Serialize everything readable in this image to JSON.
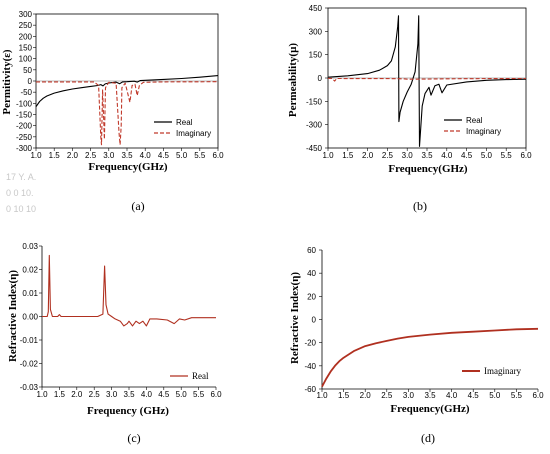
{
  "chart_data": [
    {
      "panel": "a",
      "type": "line",
      "caption": "(a)",
      "xlabel": "Frequency(GHz)",
      "ylabel": "Permitivity(ε)",
      "xlim": [
        1.0,
        6.0
      ],
      "ylim": [
        -300,
        300
      ],
      "xticks": [
        "1.0",
        "1.5",
        "2.0",
        "2.5",
        "3.0",
        "3.5",
        "4.0",
        "4.5",
        "5.0",
        "5.5",
        "6.0"
      ],
      "yticks": [
        "300",
        "250",
        "200",
        "150",
        "100",
        "50",
        "0",
        "-50",
        "-100",
        "-150",
        "-200",
        "-250",
        "-300"
      ],
      "legend_position": "bottom-right",
      "series": [
        {
          "name": "Real",
          "color": "#000000",
          "dash": "solid",
          "points": [
            [
              1.0,
              -115
            ],
            [
              1.1,
              -92
            ],
            [
              1.2,
              -77
            ],
            [
              1.3,
              -67
            ],
            [
              1.5,
              -54
            ],
            [
              1.75,
              -44
            ],
            [
              2.0,
              -36
            ],
            [
              2.25,
              -30
            ],
            [
              2.5,
              -24
            ],
            [
              2.7,
              -20
            ],
            [
              2.78,
              -16
            ],
            [
              2.84,
              -22
            ],
            [
              2.9,
              -13
            ],
            [
              3.0,
              -9
            ],
            [
              3.2,
              -5
            ],
            [
              3.3,
              -12
            ],
            [
              3.38,
              -4
            ],
            [
              3.5,
              -3
            ],
            [
              3.7,
              -1
            ],
            [
              3.78,
              -5
            ],
            [
              3.86,
              2
            ],
            [
              4.0,
              3
            ],
            [
              4.5,
              7
            ],
            [
              5.0,
              11
            ],
            [
              5.5,
              17
            ],
            [
              6.0,
              24
            ]
          ]
        },
        {
          "name": "Imaginary",
          "color": "#c0392b",
          "dash": "dashed",
          "points": [
            [
              1.0,
              -4
            ],
            [
              2.6,
              -4
            ],
            [
              2.72,
              -20
            ],
            [
              2.78,
              -250
            ],
            [
              2.8,
              -285
            ],
            [
              2.83,
              -40
            ],
            [
              2.88,
              -260
            ],
            [
              2.91,
              -30
            ],
            [
              3.0,
              -6
            ],
            [
              3.2,
              -10
            ],
            [
              3.28,
              -230
            ],
            [
              3.31,
              -285
            ],
            [
              3.34,
              -200
            ],
            [
              3.36,
              -30
            ],
            [
              3.45,
              -10
            ],
            [
              3.52,
              -55
            ],
            [
              3.58,
              -95
            ],
            [
              3.64,
              -20
            ],
            [
              3.72,
              -15
            ],
            [
              3.78,
              -65
            ],
            [
              3.84,
              -20
            ],
            [
              3.95,
              -6
            ],
            [
              4.5,
              -4
            ],
            [
              6.0,
              -3
            ]
          ]
        }
      ]
    },
    {
      "panel": "b",
      "type": "line",
      "caption": "(b)",
      "xlabel": "Frequency(GHz)",
      "ylabel": "Permeability(µ)",
      "xlim": [
        1.0,
        6.0
      ],
      "ylim": [
        -450,
        450
      ],
      "xticks": [
        "1.0",
        "1.5",
        "2.0",
        "2.5",
        "3.0",
        "3.5",
        "4.0",
        "4.5",
        "5.0",
        "5.5",
        "6.0"
      ],
      "yticks": [
        "450",
        "300",
        "150",
        "0",
        "-150",
        "-300",
        "-450"
      ],
      "legend_position": "bottom-right",
      "series": [
        {
          "name": "Real",
          "color": "#000000",
          "dash": "solid",
          "points": [
            [
              1.0,
              5
            ],
            [
              1.5,
              14
            ],
            [
              2.0,
              28
            ],
            [
              2.3,
              50
            ],
            [
              2.5,
              80
            ],
            [
              2.6,
              110
            ],
            [
              2.7,
              200
            ],
            [
              2.76,
              330
            ],
            [
              2.78,
              400
            ],
            [
              2.79,
              -280
            ],
            [
              2.82,
              -220
            ],
            [
              2.9,
              -150
            ],
            [
              3.0,
              -90
            ],
            [
              3.1,
              -40
            ],
            [
              3.2,
              40
            ],
            [
              3.27,
              220
            ],
            [
              3.29,
              400
            ],
            [
              3.31,
              -440
            ],
            [
              3.38,
              -180
            ],
            [
              3.45,
              -100
            ],
            [
              3.55,
              -60
            ],
            [
              3.6,
              -110
            ],
            [
              3.7,
              -50
            ],
            [
              3.8,
              -40
            ],
            [
              3.88,
              -95
            ],
            [
              4.0,
              -45
            ],
            [
              4.5,
              -25
            ],
            [
              5.0,
              -15
            ],
            [
              5.5,
              -10
            ],
            [
              6.0,
              -8
            ]
          ]
        },
        {
          "name": "Imaginary",
          "color": "#c0392b",
          "dash": "dashed",
          "points": [
            [
              1.0,
              -2
            ],
            [
              1.1,
              -3
            ],
            [
              1.17,
              -20
            ],
            [
              1.22,
              -3
            ],
            [
              2.5,
              -4
            ],
            [
              2.9,
              -5
            ],
            [
              3.0,
              -8
            ],
            [
              3.4,
              -7
            ],
            [
              4.0,
              -5
            ],
            [
              5.0,
              -4
            ],
            [
              6.0,
              -3
            ]
          ]
        }
      ]
    },
    {
      "panel": "c",
      "type": "line",
      "caption": "(c)",
      "xlabel": "Frequency (GHz)",
      "ylabel": "Refractive Index(η)",
      "xlim": [
        1.0,
        6.0
      ],
      "ylim": [
        -0.03,
        0.03
      ],
      "xticks": [
        "1.0",
        "1.5",
        "2.0",
        "2.5",
        "3.0",
        "3.5",
        "4.0",
        "4.5",
        "5.0",
        "5.5",
        "6.0"
      ],
      "yticks": [
        "0.03",
        "0.02",
        "0.01",
        "0.00",
        "-0.01",
        "-0.02",
        "-0.03"
      ],
      "legend_position": "bottom-right",
      "series": [
        {
          "name": "Real",
          "color": "#b03020",
          "dash": "solid",
          "points": [
            [
              1.0,
              0.0
            ],
            [
              1.15,
              0.0
            ],
            [
              1.18,
              0.002
            ],
            [
              1.21,
              0.026
            ],
            [
              1.24,
              0.003
            ],
            [
              1.3,
              0.0
            ],
            [
              1.45,
              0.0
            ],
            [
              1.5,
              0.0008
            ],
            [
              1.55,
              0.0
            ],
            [
              2.6,
              0.0
            ],
            [
              2.75,
              0.001
            ],
            [
              2.8,
              0.0215
            ],
            [
              2.84,
              0.005
            ],
            [
              2.9,
              0.001
            ],
            [
              3.0,
              0.0
            ],
            [
              3.1,
              -0.001
            ],
            [
              3.25,
              -0.002
            ],
            [
              3.35,
              -0.004
            ],
            [
              3.45,
              -0.003
            ],
            [
              3.5,
              -0.002
            ],
            [
              3.6,
              -0.004
            ],
            [
              3.7,
              -0.002
            ],
            [
              3.8,
              -0.003
            ],
            [
              3.9,
              -0.002
            ],
            [
              4.0,
              -0.004
            ],
            [
              4.1,
              -0.001
            ],
            [
              4.3,
              -0.001
            ],
            [
              4.6,
              -0.0015
            ],
            [
              4.8,
              -0.003
            ],
            [
              4.95,
              -0.001
            ],
            [
              5.1,
              -0.0015
            ],
            [
              5.3,
              -0.0005
            ],
            [
              6.0,
              -0.0005
            ]
          ]
        }
      ]
    },
    {
      "panel": "d",
      "type": "line",
      "caption": "(d)",
      "xlabel": "Frequency(GHz)",
      "ylabel": "Refractive Index(η)",
      "xlim": [
        1.0,
        6.0
      ],
      "ylim": [
        -60,
        60
      ],
      "xticks": [
        "1.0",
        "1.5",
        "2.0",
        "2.5",
        "3.0",
        "3.5",
        "4.0",
        "4.5",
        "5.0",
        "5.5",
        "6.0"
      ],
      "yticks": [
        "60",
        "40",
        "20",
        "0",
        "-20",
        "-40",
        "-60"
      ],
      "legend_position": "right",
      "series": [
        {
          "name": "Imaginary",
          "color": "#b03020",
          "dash": "solid",
          "points": [
            [
              1.0,
              -58
            ],
            [
              1.1,
              -51
            ],
            [
              1.2,
              -45
            ],
            [
              1.3,
              -40
            ],
            [
              1.4,
              -36
            ],
            [
              1.5,
              -33
            ],
            [
              1.75,
              -27
            ],
            [
              2.0,
              -23
            ],
            [
              2.25,
              -20.5
            ],
            [
              2.5,
              -18.5
            ],
            [
              2.75,
              -16.5
            ],
            [
              3.0,
              -15
            ],
            [
              3.5,
              -13
            ],
            [
              4.0,
              -11.5
            ],
            [
              4.5,
              -10.5
            ],
            [
              5.0,
              -9.5
            ],
            [
              5.5,
              -8.5
            ],
            [
              6.0,
              -8
            ]
          ]
        }
      ]
    }
  ],
  "ghost_text": [
    "17 Y. A.",
    "0 0 10.",
    "0 10 10"
  ]
}
